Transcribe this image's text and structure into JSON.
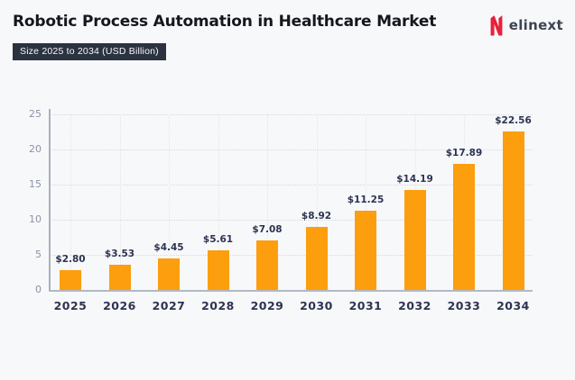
{
  "header": {
    "title": "Robotic Process Automation in Healthcare Market",
    "subtitle_badge": "Size 2025 to 2034 (USD Billion)",
    "logo": {
      "brand": "elinext",
      "icon": "elinext-n-icon",
      "icon_color": "#e8203a",
      "text_color": "#3d4450"
    }
  },
  "colors": {
    "background": "#f7f8fa",
    "bar": "#fc9e0e",
    "badge_background": "#2b3240",
    "title_text": "#16161e",
    "dark_label": "#2e3350",
    "y_tick_label": "#8a93a6",
    "gridline": "#d6d9e0",
    "axis_line": "#a9b0bd"
  },
  "chart_data": {
    "type": "bar",
    "title": "Robotic Process Automation in Healthcare Market",
    "subtitle": "Size 2025 to 2034 (USD Billion)",
    "categories": [
      "2025",
      "2026",
      "2027",
      "2028",
      "2029",
      "2030",
      "2031",
      "2032",
      "2033",
      "2034"
    ],
    "values": [
      2.8,
      3.53,
      4.45,
      5.61,
      7.08,
      8.92,
      11.25,
      14.19,
      17.89,
      22.56
    ],
    "value_labels": [
      "$2.80",
      "$3.53",
      "$4.45",
      "$5.61",
      "$7.08",
      "$8.92",
      "$11.25",
      "$14.19",
      "$17.89",
      "$22.56"
    ],
    "xlabel": "",
    "ylabel": "",
    "ylim": [
      0,
      25
    ],
    "yticks": [
      0,
      5,
      10,
      15,
      20,
      25
    ],
    "grid": "dotted horizontal and vertical gridlines",
    "legend": "none",
    "bar_color": "#fc9e0e",
    "units": "USD Billion"
  }
}
